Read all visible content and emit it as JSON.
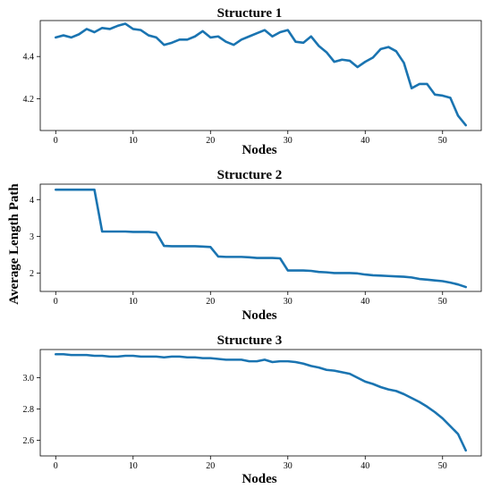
{
  "figure": {
    "ylabel": "Average Length Path"
  },
  "chart_data": [
    {
      "type": "line",
      "title": "Structure 1",
      "xlabel": "Nodes",
      "ylabel": "Average Length Path",
      "xlim": [
        -2,
        55
      ],
      "ylim": [
        4.05,
        4.57
      ],
      "xticks": [
        0,
        10,
        20,
        30,
        40,
        50
      ],
      "yticks": [
        4.2,
        4.4
      ],
      "ytick_labels": [
        "4.2",
        "4.4"
      ],
      "color": "#1a74b1",
      "grid": false,
      "series": [
        {
          "x": [
            0,
            1,
            2,
            3,
            4,
            5,
            6,
            7,
            8,
            9,
            10,
            11,
            12,
            13,
            14,
            15,
            16,
            17,
            18,
            19,
            20,
            21,
            22,
            23,
            24,
            25,
            26,
            27,
            28,
            29,
            30,
            31,
            32,
            33,
            34,
            35,
            36,
            37,
            38,
            39,
            40,
            41,
            42,
            43,
            44,
            45,
            46,
            47,
            48,
            49,
            50,
            51,
            52,
            53
          ],
          "values": [
            4.49,
            4.5,
            4.49,
            4.505,
            4.53,
            4.515,
            4.535,
            4.53,
            4.545,
            4.555,
            4.53,
            4.525,
            4.5,
            4.49,
            4.455,
            4.465,
            4.48,
            4.48,
            4.495,
            4.52,
            4.49,
            4.495,
            4.47,
            4.455,
            4.48,
            4.495,
            4.51,
            4.525,
            4.495,
            4.515,
            4.525,
            4.47,
            4.465,
            4.495,
            4.45,
            4.42,
            4.375,
            4.385,
            4.38,
            4.35,
            4.375,
            4.395,
            4.435,
            4.445,
            4.425,
            4.37,
            4.25,
            4.27,
            4.27,
            4.22,
            4.215,
            4.205,
            4.12,
            4.075
          ]
        }
      ]
    },
    {
      "type": "line",
      "title": "Structure 2",
      "xlabel": "Nodes",
      "ylabel": "Average Length Path",
      "xlim": [
        -2,
        55
      ],
      "ylim": [
        1.5,
        4.42
      ],
      "xticks": [
        0,
        10,
        20,
        30,
        40,
        50
      ],
      "yticks": [
        2,
        3,
        4
      ],
      "ytick_labels": [
        "2",
        "3",
        "4"
      ],
      "color": "#1a74b1",
      "grid": false,
      "series": [
        {
          "x": [
            0,
            1,
            2,
            3,
            4,
            5,
            6,
            7,
            8,
            9,
            10,
            11,
            12,
            13,
            14,
            15,
            16,
            17,
            18,
            19,
            20,
            21,
            22,
            23,
            24,
            25,
            26,
            27,
            28,
            29,
            30,
            31,
            32,
            33,
            34,
            35,
            36,
            37,
            38,
            39,
            40,
            41,
            42,
            43,
            44,
            45,
            46,
            47,
            48,
            49,
            50,
            51,
            52,
            53
          ],
          "values": [
            4.27,
            4.27,
            4.27,
            4.27,
            4.27,
            4.27,
            3.13,
            3.13,
            3.13,
            3.13,
            3.12,
            3.12,
            3.12,
            3.1,
            2.74,
            2.73,
            2.73,
            2.73,
            2.73,
            2.72,
            2.71,
            2.45,
            2.44,
            2.44,
            2.44,
            2.43,
            2.41,
            2.41,
            2.41,
            2.4,
            2.07,
            2.07,
            2.07,
            2.06,
            2.03,
            2.02,
            2.0,
            2.0,
            2.0,
            1.99,
            1.96,
            1.94,
            1.93,
            1.92,
            1.91,
            1.9,
            1.88,
            1.84,
            1.82,
            1.8,
            1.78,
            1.74,
            1.69,
            1.62
          ]
        }
      ]
    },
    {
      "type": "line",
      "title": "Structure 3",
      "xlabel": "Nodes",
      "ylabel": "Average Length Path",
      "xlim": [
        -2,
        55
      ],
      "ylim": [
        2.5,
        3.18
      ],
      "xticks": [
        0,
        10,
        20,
        30,
        40,
        50
      ],
      "yticks": [
        2.6,
        2.8,
        3.0
      ],
      "ytick_labels": [
        "2.6",
        "2.8",
        "3.0"
      ],
      "color": "#1a74b1",
      "grid": false,
      "series": [
        {
          "x": [
            0,
            1,
            2,
            3,
            4,
            5,
            6,
            7,
            8,
            9,
            10,
            11,
            12,
            13,
            14,
            15,
            16,
            17,
            18,
            19,
            20,
            21,
            22,
            23,
            24,
            25,
            26,
            27,
            28,
            29,
            30,
            31,
            32,
            33,
            34,
            35,
            36,
            37,
            38,
            39,
            40,
            41,
            42,
            43,
            44,
            45,
            46,
            47,
            48,
            49,
            50,
            51,
            52,
            53
          ],
          "values": [
            3.15,
            3.15,
            3.145,
            3.145,
            3.145,
            3.14,
            3.14,
            3.135,
            3.135,
            3.14,
            3.14,
            3.135,
            3.135,
            3.135,
            3.13,
            3.135,
            3.135,
            3.13,
            3.13,
            3.125,
            3.125,
            3.12,
            3.115,
            3.115,
            3.115,
            3.105,
            3.105,
            3.115,
            3.1,
            3.105,
            3.105,
            3.1,
            3.09,
            3.075,
            3.065,
            3.05,
            3.045,
            3.035,
            3.025,
            3.0,
            2.975,
            2.96,
            2.94,
            2.925,
            2.915,
            2.895,
            2.87,
            2.845,
            2.815,
            2.78,
            2.74,
            2.69,
            2.64,
            2.535
          ]
        }
      ]
    }
  ]
}
